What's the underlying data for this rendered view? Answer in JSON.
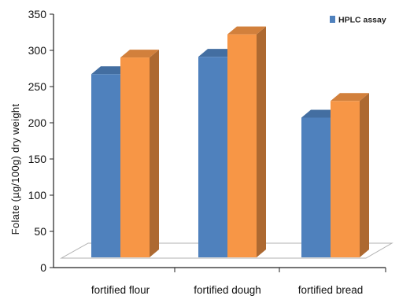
{
  "chart_data": {
    "type": "bar",
    "style": "3d-clustered",
    "categories": [
      "fortified flour",
      "fortified dough",
      "fortified bread"
    ],
    "series": [
      {
        "name": "",
        "color": "#4F81BD",
        "values": [
          253,
          277,
          193
        ]
      },
      {
        "name": "HPLC assay",
        "color": "#F79646",
        "values": [
          276,
          308,
          216
        ]
      }
    ],
    "title": "",
    "xlabel": "",
    "ylabel": "Folate (µg/100g) dry weight",
    "ylim": [
      0,
      350
    ],
    "yticks": [
      "0",
      "50",
      "100",
      "150",
      "200",
      "250",
      "300",
      "350"
    ],
    "grid": false,
    "legend": {
      "position": "top-right",
      "entries": [
        "HPLC assay"
      ]
    }
  }
}
